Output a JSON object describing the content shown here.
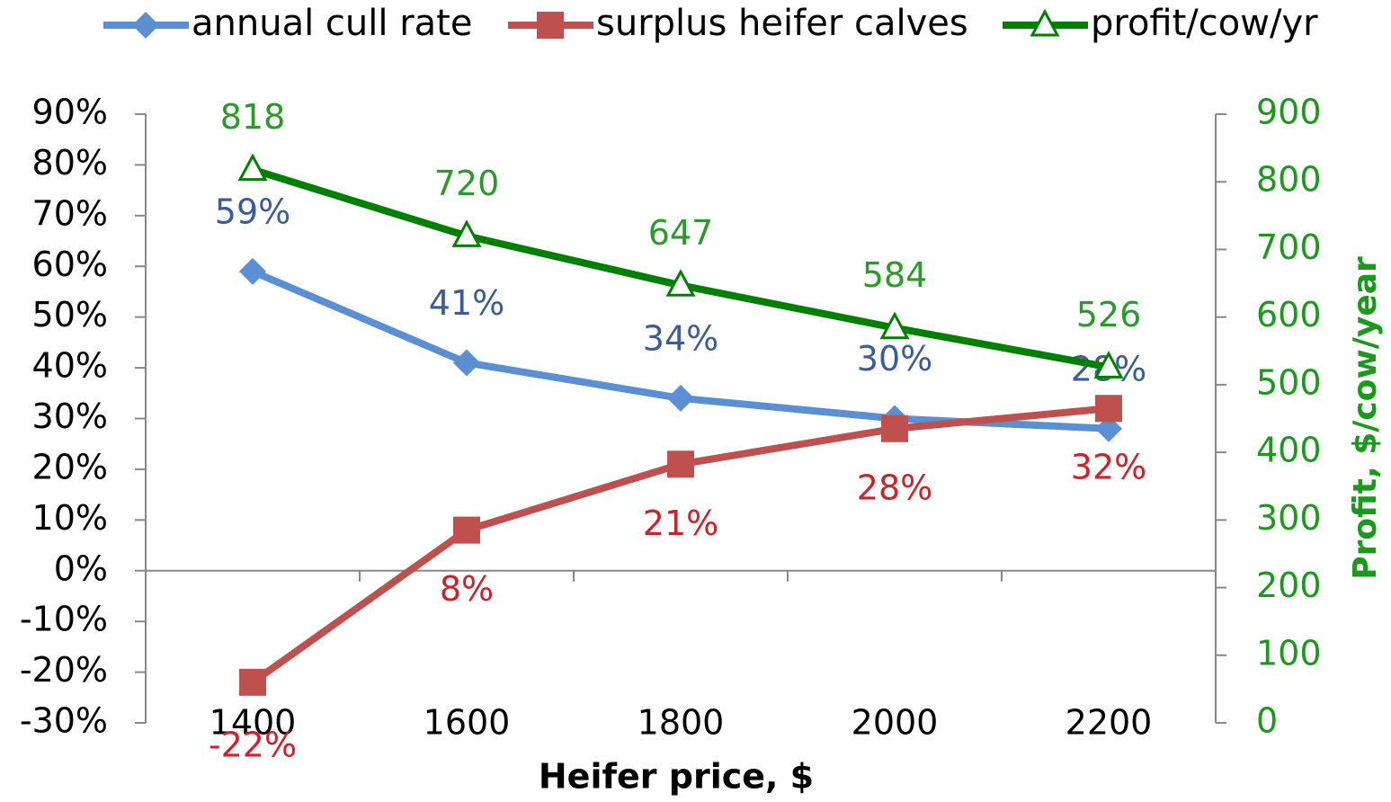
{
  "chart_data": {
    "type": "line",
    "x_label": "Heifer price, $",
    "y2_label": "Profit, $/cow/year",
    "categories": [
      "1400",
      "1600",
      "1800",
      "2000",
      "2200"
    ],
    "series": [
      {
        "name": "annual cull rate",
        "color": "#5b8fd4",
        "label_color": "#3b5c9c",
        "marker": "diamond",
        "values": [
          59,
          41,
          34,
          30,
          28
        ],
        "value_labels": [
          "59%",
          "41%",
          "34%",
          "30%",
          "28%"
        ]
      },
      {
        "name": "surplus heifer calves",
        "color": "#c0504d",
        "label_color": "#d0202a",
        "marker": "square",
        "values": [
          -22,
          8,
          21,
          28,
          32
        ],
        "value_labels": [
          "-22%",
          "8%",
          "21%",
          "28%",
          "32%"
        ]
      },
      {
        "name": "profit/cow/yr",
        "color": "#008000",
        "label_color": "#2a9a2a",
        "marker": "triangle",
        "axis": "y2",
        "values": [
          818,
          720,
          647,
          584,
          526
        ]
      }
    ],
    "ylim": [
      -30,
      90
    ],
    "yticks": [
      {
        "value": -30,
        "label": "-30%"
      },
      {
        "value": -20,
        "label": "-20%"
      },
      {
        "value": -10,
        "label": "-10%"
      },
      {
        "value": 0,
        "label": "0%"
      },
      {
        "value": 10,
        "label": "10%"
      },
      {
        "value": 20,
        "label": "20%"
      },
      {
        "value": 30,
        "label": "30%"
      },
      {
        "value": 40,
        "label": "40%"
      },
      {
        "value": 50,
        "label": "50%"
      },
      {
        "value": 60,
        "label": "60%"
      },
      {
        "value": 70,
        "label": "70%"
      },
      {
        "value": 80,
        "label": "80%"
      },
      {
        "value": 90,
        "label": "90%"
      }
    ],
    "y2lim": [
      0,
      900
    ],
    "y2ticks": [
      0,
      100,
      200,
      300,
      400,
      500,
      600,
      700,
      800,
      900
    ],
    "y2_color": "#1a9a1a",
    "legend": "top"
  }
}
